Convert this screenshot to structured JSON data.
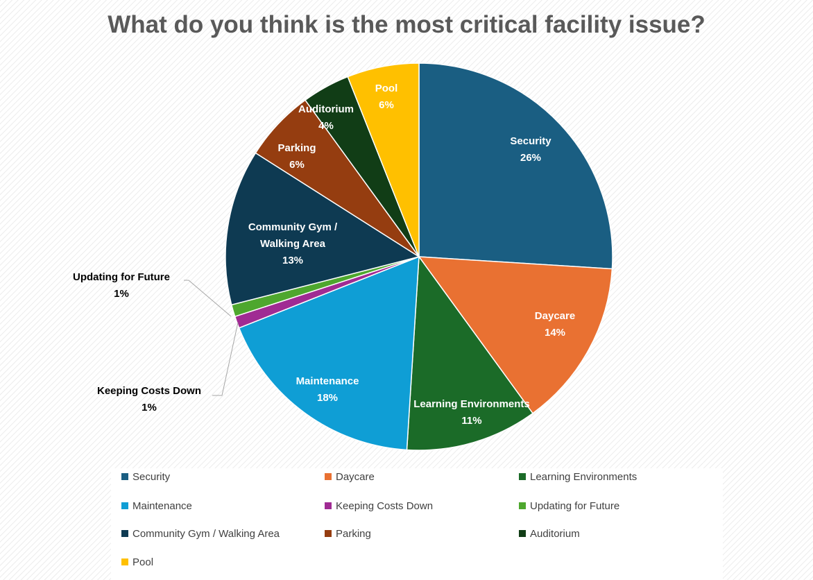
{
  "chart_data": {
    "type": "pie",
    "title": "What do you think is the most critical facility issue?",
    "legend_position": "bottom",
    "slices": [
      {
        "name": "Security",
        "value": 26,
        "label": "26%",
        "color": "#1a5e82"
      },
      {
        "name": "Daycare",
        "value": 14,
        "label": "14%",
        "color": "#e97132"
      },
      {
        "name": "Learning Environments",
        "value": 11,
        "label": "11%",
        "color": "#1b6b28"
      },
      {
        "name": "Maintenance",
        "value": 18,
        "label": "18%",
        "color": "#0f9ed5"
      },
      {
        "name": "Keeping Costs Down",
        "value": 1,
        "label": "1%",
        "color": "#a02b93"
      },
      {
        "name": "Updating for Future",
        "value": 1,
        "label": "1%",
        "color": "#4ea72e"
      },
      {
        "name": "Community Gym / Walking Area",
        "value": 13,
        "label": "13%",
        "color": "#0e3a52"
      },
      {
        "name": "Parking",
        "value": 6,
        "label": "6%",
        "color": "#953d10"
      },
      {
        "name": "Auditorium",
        "value": 4,
        "label": "4%",
        "color": "#113d16"
      },
      {
        "name": "Pool",
        "value": 6,
        "label": "6%",
        "color": "#ffc000"
      }
    ]
  }
}
